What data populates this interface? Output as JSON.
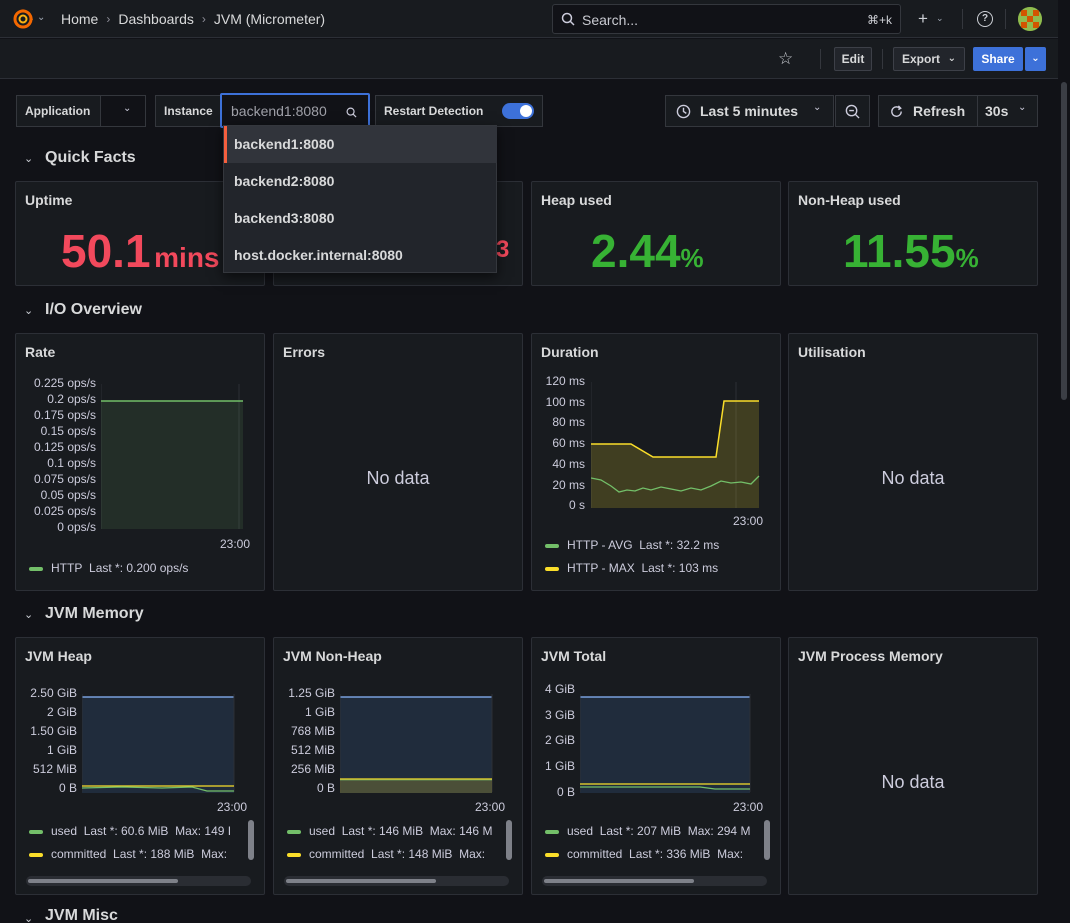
{
  "breadcrumb": {
    "home": "Home",
    "dashboards": "Dashboards",
    "current": "JVM (Micrometer)"
  },
  "search": {
    "placeholder": "Search...",
    "shortcut": "⌘+k"
  },
  "toolbar": {
    "edit": "Edit",
    "export": "Export",
    "share": "Share"
  },
  "variables": {
    "application_label": "Application",
    "instance_label": "Instance",
    "instance_value": "backend1:8080",
    "restart_label": "Restart Detection",
    "restart_enabled": true
  },
  "time": {
    "range": "Last 5 minutes",
    "refresh": "Refresh",
    "interval": "30s"
  },
  "dropdown_options": [
    "backend1:8080",
    "backend2:8080",
    "backend3:8080",
    "host.docker.internal:8080"
  ],
  "rows": {
    "quick_facts": "Quick Facts",
    "io_overview": "I/O Overview",
    "jvm_memory": "JVM Memory",
    "jvm_misc": "JVM Misc"
  },
  "quick_facts": {
    "uptime": {
      "title": "Uptime",
      "value": "50.1",
      "unit": "mins",
      "color": "#f2495c"
    },
    "start_time_partial": "3",
    "heap_used": {
      "title": "Heap used",
      "value": "2.44",
      "unit": "%",
      "color": "#37b234"
    },
    "nonheap_used": {
      "title": "Non-Heap used",
      "value": "11.55",
      "unit": "%",
      "color": "#37b234"
    }
  },
  "io": {
    "rate": {
      "title": "Rate",
      "yticks": [
        "0.225 ops/s",
        "0.2 ops/s",
        "0.175 ops/s",
        "0.15 ops/s",
        "0.125 ops/s",
        "0.1 ops/s",
        "0.075 ops/s",
        "0.05 ops/s",
        "0.025 ops/s",
        "0 ops/s"
      ],
      "xtick": "23:00",
      "legend": [
        {
          "name": "HTTP",
          "last": "Last *: 0.200 ops/s",
          "color": "#73bf69"
        }
      ]
    },
    "errors": {
      "title": "Errors",
      "nodata": "No data"
    },
    "duration": {
      "title": "Duration",
      "yticks": [
        "120 ms",
        "100 ms",
        "80 ms",
        "60 ms",
        "40 ms",
        "20 ms",
        "0 s"
      ],
      "xtick": "23:00",
      "legend": [
        {
          "name": "HTTP - AVG",
          "last": "Last *: 32.2 ms",
          "color": "#73bf69"
        },
        {
          "name": "HTTP - MAX",
          "last": "Last *: 103 ms",
          "color": "#fade2a"
        }
      ]
    },
    "utilisation": {
      "title": "Utilisation",
      "nodata": "No data"
    }
  },
  "memory": {
    "heap": {
      "title": "JVM Heap",
      "yticks": [
        "2.50 GiB",
        "2 GiB",
        "1.50 GiB",
        "1 GiB",
        "512 MiB",
        "0 B"
      ],
      "xtick": "23:00",
      "legend": [
        {
          "name": "used",
          "last": "Last *: 60.6 MiB",
          "max": "Max: 149 I",
          "color": "#73bf69"
        },
        {
          "name": "committed",
          "last": "Last *: 188 MiB",
          "max": "Max:",
          "color": "#fade2a"
        }
      ]
    },
    "nonheap": {
      "title": "JVM Non-Heap",
      "yticks": [
        "1.25 GiB",
        "1 GiB",
        "768 MiB",
        "512 MiB",
        "256 MiB",
        "0 B"
      ],
      "xtick": "23:00",
      "legend": [
        {
          "name": "used",
          "last": "Last *: 146 MiB",
          "max": "Max: 146 M",
          "color": "#73bf69"
        },
        {
          "name": "committed",
          "last": "Last *: 148 MiB",
          "max": "Max:",
          "color": "#fade2a"
        }
      ]
    },
    "total": {
      "title": "JVM Total",
      "yticks": [
        "4 GiB",
        "3 GiB",
        "2 GiB",
        "1 GiB",
        "0 B"
      ],
      "xtick": "23:00",
      "legend": [
        {
          "name": "used",
          "last": "Last *: 207 MiB",
          "max": "Max: 294 M",
          "color": "#73bf69"
        },
        {
          "name": "committed",
          "last": "Last *: 336 MiB",
          "max": "Max:",
          "color": "#fade2a"
        }
      ]
    },
    "process": {
      "title": "JVM Process Memory",
      "nodata": "No data"
    }
  }
}
